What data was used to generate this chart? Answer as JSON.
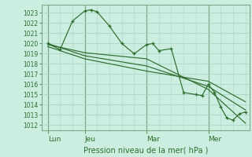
{
  "background_color": "#cceee0",
  "grid_color": "#aad4c4",
  "line_color": "#2d6e2d",
  "marker_color": "#2d6e2d",
  "ylabel_ticks": [
    1012,
    1013,
    1014,
    1015,
    1016,
    1017,
    1018,
    1019,
    1020,
    1021,
    1022,
    1023
  ],
  "ylim": [
    1011.5,
    1023.8
  ],
  "xlabel": "Pression niveau de la mer( hPa )",
  "xtick_labels": [
    "Lun",
    "Jeu",
    "Mar",
    "Mer"
  ],
  "xtick_positions": [
    0,
    18,
    48,
    78
  ],
  "xlim": [
    -3,
    98
  ],
  "vline_positions": [
    0,
    18,
    48,
    78
  ],
  "series": [
    {
      "x": [
        0,
        6,
        12,
        18,
        21,
        24,
        30,
        36,
        42,
        48,
        51,
        54,
        60,
        66,
        72,
        75,
        78,
        81,
        84,
        87,
        90,
        93,
        96
      ],
      "y": [
        1020.0,
        1019.4,
        1022.2,
        1023.2,
        1023.3,
        1023.1,
        1021.7,
        1020.0,
        1019.0,
        1019.9,
        1020.0,
        1019.3,
        1019.5,
        1015.2,
        1015.0,
        1014.9,
        1016.0,
        1015.2,
        1013.8,
        1012.7,
        1012.5,
        1013.1,
        1013.3
      ],
      "has_markers": true
    },
    {
      "x": [
        0,
        18,
        48,
        78,
        96
      ],
      "y": [
        1019.9,
        1019.1,
        1018.5,
        1015.5,
        1012.2
      ],
      "has_markers": false
    },
    {
      "x": [
        0,
        18,
        48,
        78,
        96
      ],
      "y": [
        1020.0,
        1018.8,
        1017.8,
        1015.8,
        1013.5
      ],
      "has_markers": false
    },
    {
      "x": [
        0,
        18,
        48,
        78,
        96
      ],
      "y": [
        1019.7,
        1018.5,
        1017.3,
        1016.3,
        1014.3
      ],
      "has_markers": false
    }
  ]
}
